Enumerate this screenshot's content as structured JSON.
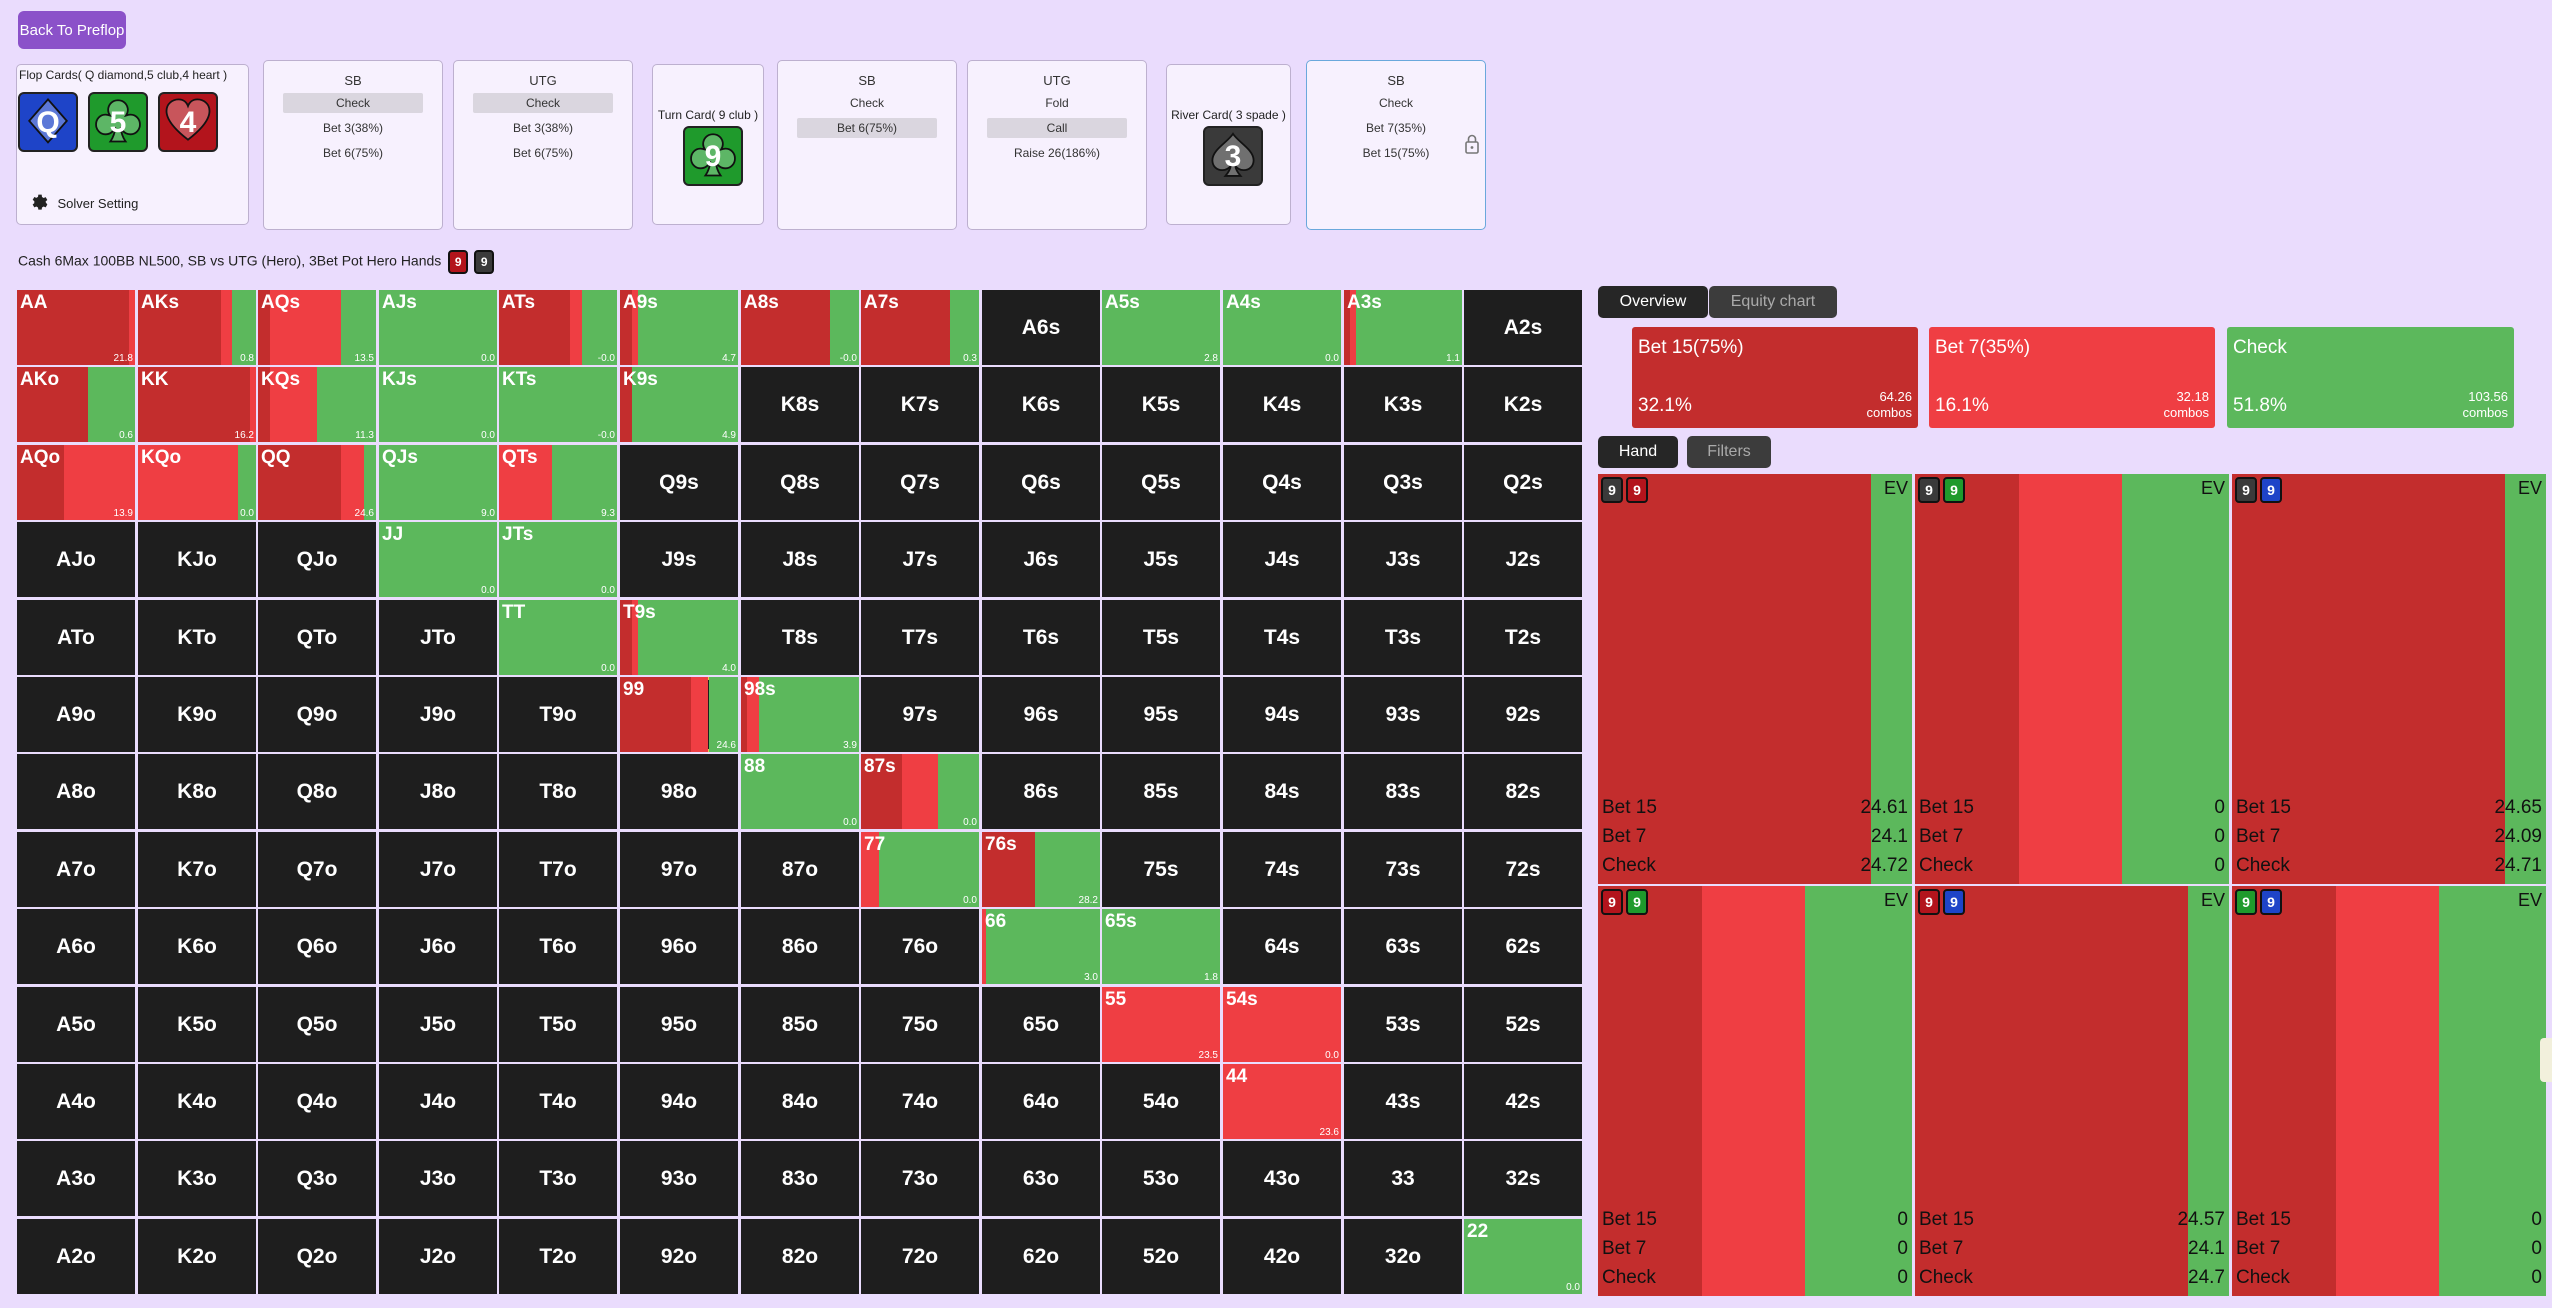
{
  "header": {
    "back_label": "Back To Preflop",
    "solver_setting": "Solver Setting"
  },
  "board": {
    "flop_label": "Flop Cards( Q diamond,5 club,4 heart )",
    "flop_cards": [
      {
        "rank": "Q",
        "suit": "diamond",
        "color": "#1e44c8"
      },
      {
        "rank": "5",
        "suit": "club",
        "color": "#1f9a2c"
      },
      {
        "rank": "4",
        "suit": "heart",
        "color": "#b3141c"
      }
    ],
    "turn_label": "Turn Card( 9 club )",
    "turn_card": {
      "rank": "9",
      "suit": "club",
      "color": "#1f9a2c"
    },
    "river_label": "River Card( 3 spade )",
    "river_card": {
      "rank": "3",
      "suit": "spade",
      "color": "#3a3a3a"
    }
  },
  "actions": [
    {
      "player": "SB",
      "items": [
        {
          "label": "Check",
          "selected": true
        },
        {
          "label": "Bet 3(38%)",
          "selected": false
        },
        {
          "label": "Bet 6(75%)",
          "selected": false
        }
      ]
    },
    {
      "player": "UTG",
      "items": [
        {
          "label": "Check",
          "selected": true
        },
        {
          "label": "Bet 3(38%)",
          "selected": false
        },
        {
          "label": "Bet 6(75%)",
          "selected": false
        }
      ]
    },
    {
      "player": "SB",
      "items": [
        {
          "label": "Check",
          "selected": false
        },
        {
          "label": "Bet 6(75%)",
          "selected": true
        }
      ]
    },
    {
      "player": "UTG",
      "items": [
        {
          "label": "Fold",
          "selected": false
        },
        {
          "label": "Call",
          "selected": true
        },
        {
          "label": "Raise 26(186%)",
          "selected": false
        }
      ]
    },
    {
      "player": "SB",
      "items": [
        {
          "label": "Check",
          "selected": false
        },
        {
          "label": "Bet 7(35%)",
          "selected": false
        },
        {
          "label": "Bet 15(75%)",
          "selected": false
        }
      ]
    }
  ],
  "description": "Cash 6Max 100BB NL500, SB vs UTG (Hero), 3Bet Pot Hero Hands",
  "desc_cards": [
    {
      "rank": "9",
      "color": "#b3141c"
    },
    {
      "rank": "9",
      "color": "#3a3a3a"
    }
  ],
  "colors": {
    "bet15": "#c32d2d",
    "bet7": "#ef3e43",
    "check": "#5cb85c",
    "dark": "#1e1e1e"
  },
  "grid": [
    [
      "AA",
      "AKs",
      "AQs",
      "AJs",
      "ATs",
      "A9s",
      "A8s",
      "A7s",
      "A6s",
      "A5s",
      "A4s",
      "A3s",
      "A2s"
    ],
    [
      "AKo",
      "KK",
      "KQs",
      "KJs",
      "KTs",
      "K9s",
      "K8s",
      "K7s",
      "K6s",
      "K5s",
      "K4s",
      "K3s",
      "K2s"
    ],
    [
      "AQo",
      "KQo",
      "QQ",
      "QJs",
      "QTs",
      "Q9s",
      "Q8s",
      "Q7s",
      "Q6s",
      "Q5s",
      "Q4s",
      "Q3s",
      "Q2s"
    ],
    [
      "AJo",
      "KJo",
      "QJo",
      "JJ",
      "JTs",
      "J9s",
      "J8s",
      "J7s",
      "J6s",
      "J5s",
      "J4s",
      "J3s",
      "J2s"
    ],
    [
      "ATo",
      "KTo",
      "QTo",
      "JTo",
      "TT",
      "T9s",
      "T8s",
      "T7s",
      "T6s",
      "T5s",
      "T4s",
      "T3s",
      "T2s"
    ],
    [
      "A9o",
      "K9o",
      "Q9o",
      "J9o",
      "T9o",
      "99",
      "98s",
      "97s",
      "96s",
      "95s",
      "94s",
      "93s",
      "92s"
    ],
    [
      "A8o",
      "K8o",
      "Q8o",
      "J8o",
      "T8o",
      "98o",
      "88",
      "87s",
      "86s",
      "85s",
      "84s",
      "83s",
      "82s"
    ],
    [
      "A7o",
      "K7o",
      "Q7o",
      "J7o",
      "T7o",
      "97o",
      "87o",
      "77",
      "76s",
      "75s",
      "74s",
      "73s",
      "72s"
    ],
    [
      "A6o",
      "K6o",
      "Q6o",
      "J6o",
      "T6o",
      "96o",
      "86o",
      "76o",
      "66",
      "65s",
      "64s",
      "63s",
      "62s"
    ],
    [
      "A5o",
      "K5o",
      "Q5o",
      "J5o",
      "T5o",
      "95o",
      "85o",
      "75o",
      "65o",
      "55",
      "54s",
      "53s",
      "52s"
    ],
    [
      "A4o",
      "K4o",
      "Q4o",
      "J4o",
      "T4o",
      "94o",
      "84o",
      "74o",
      "64o",
      "54o",
      "44",
      "43s",
      "42s"
    ],
    [
      "A3o",
      "K3o",
      "Q3o",
      "J3o",
      "T3o",
      "93o",
      "83o",
      "73o",
      "63o",
      "53o",
      "43o",
      "33",
      "32s"
    ],
    [
      "A2o",
      "K2o",
      "Q2o",
      "J2o",
      "T2o",
      "92o",
      "82o",
      "72o",
      "62o",
      "52o",
      "42o",
      "32o",
      "22"
    ]
  ],
  "hand_strategy": {
    "AA": {
      "mix": [
        0.95,
        0.05,
        0
      ],
      "ev": "21.8"
    },
    "AKs": {
      "mix": [
        0.7,
        0.1,
        0.2
      ],
      "ev": "0.8"
    },
    "AQs": {
      "mix": [
        0.1,
        0.6,
        0.3
      ],
      "ev": "13.5"
    },
    "AJs": {
      "mix": [
        0,
        0,
        1
      ],
      "ev": "0.0"
    },
    "ATs": {
      "mix": [
        0.6,
        0.1,
        0.3
      ],
      "ev": "-0.0"
    },
    "A9s": {
      "mix": [
        0.1,
        0.05,
        0.85
      ],
      "ev": "4.7"
    },
    "A8s": {
      "mix": [
        0.75,
        0,
        0.25
      ],
      "ev": "-0.0"
    },
    "A7s": {
      "mix": [
        0.75,
        0,
        0.25
      ],
      "ev": "0.3"
    },
    "A5s": {
      "mix": [
        0,
        0,
        1
      ],
      "ev": "2.8"
    },
    "A4s": {
      "mix": [
        0,
        0,
        1
      ],
      "ev": "0.0"
    },
    "A3s": {
      "mix": [
        0.05,
        0.05,
        0.9
      ],
      "ev": "1.1"
    },
    "AKo": {
      "mix": [
        0.6,
        0,
        0.4
      ],
      "ev": "0.6"
    },
    "KK": {
      "mix": [
        0.95,
        0.05,
        0
      ],
      "ev": "16.2"
    },
    "KQs": {
      "mix": [
        0.1,
        0.4,
        0.5
      ],
      "ev": "11.3"
    },
    "KJs": {
      "mix": [
        0,
        0,
        1
      ],
      "ev": "0.0"
    },
    "KTs": {
      "mix": [
        0,
        0,
        1
      ],
      "ev": "-0.0"
    },
    "K9s": {
      "mix": [
        0.1,
        0,
        0.9
      ],
      "ev": "4.9"
    },
    "AQo": {
      "mix": [
        0.4,
        0.6,
        0
      ],
      "ev": "13.9"
    },
    "KQo": {
      "mix": [
        0,
        0.85,
        0.15
      ],
      "ev": "0.0"
    },
    "QQ": {
      "mix": [
        0.7,
        0.2,
        0.1
      ],
      "ev": "24.6"
    },
    "QJs": {
      "mix": [
        0,
        0,
        1
      ],
      "ev": "9.0"
    },
    "QTs": {
      "mix": [
        0,
        0.45,
        0.55
      ],
      "ev": "9.3"
    },
    "JJ": {
      "mix": [
        0,
        0,
        1
      ],
      "ev": "0.0"
    },
    "JTs": {
      "mix": [
        0,
        0,
        1
      ],
      "ev": "0.0"
    },
    "TT": {
      "mix": [
        0,
        0,
        1
      ],
      "ev": "0.0"
    },
    "T9s": {
      "mix": [
        0.1,
        0.05,
        0.85
      ],
      "ev": "4.0"
    },
    "99": {
      "mix": [
        0.6,
        0.15,
        0.25
      ],
      "ev": "24.6"
    },
    "98s": {
      "mix": [
        0.05,
        0.1,
        0.85
      ],
      "ev": "3.9"
    },
    "88": {
      "mix": [
        0,
        0,
        1
      ],
      "ev": "0.0"
    },
    "87s": {
      "mix": [
        0.35,
        0.3,
        0.35
      ],
      "ev": "0.0"
    },
    "77": {
      "mix": [
        0,
        0.15,
        0.85
      ],
      "ev": "0.0"
    },
    "76s": {
      "mix": [
        0.45,
        0,
        0.55
      ],
      "ev": "28.2"
    },
    "66": {
      "mix": [
        0,
        0.03,
        0.97
      ],
      "ev": "3.0"
    },
    "65s": {
      "mix": [
        0,
        0,
        1
      ],
      "ev": "1.8"
    },
    "55": {
      "mix": [
        0,
        1,
        0
      ],
      "ev": "23.5"
    },
    "54s": {
      "mix": [
        0,
        1,
        0
      ],
      "ev": "0.0"
    },
    "44": {
      "mix": [
        0,
        1,
        0
      ],
      "ev": "23.6"
    },
    "22": {
      "mix": [
        0,
        0,
        1
      ],
      "ev": "0.0"
    }
  },
  "right_tabs": [
    {
      "label": "Overview",
      "active": true
    },
    {
      "label": "Equity chart",
      "active": false
    }
  ],
  "overview": [
    {
      "name": "Bet 15(75%)",
      "pct": "32.1%",
      "combos": "64.26",
      "combos_label": "combos",
      "color": "#c32d2d"
    },
    {
      "name": "Bet 7(35%)",
      "pct": "16.1%",
      "combos": "32.18",
      "combos_label": "combos",
      "color": "#ef3e43"
    },
    {
      "name": "Check",
      "pct": "51.8%",
      "combos": "103.56",
      "combos_label": "combos",
      "color": "#5cb85c"
    }
  ],
  "hand_tabs": [
    {
      "label": "Hand",
      "active": true
    },
    {
      "label": "Filters",
      "active": false
    }
  ],
  "hand_panels": [
    {
      "cards": [
        {
          "rank": "9",
          "color": "#3a3a3a"
        },
        {
          "rank": "9",
          "color": "#b3141c"
        }
      ],
      "mix": [
        0.87,
        0,
        0.13
      ],
      "ev_label": "EV",
      "rows": [
        {
          "label": "Bet 15",
          "ev": "24.61"
        },
        {
          "label": "Bet 7",
          "ev": "24.1"
        },
        {
          "label": "Check",
          "ev": "24.72"
        }
      ]
    },
    {
      "cards": [
        {
          "rank": "9",
          "color": "#3a3a3a"
        },
        {
          "rank": "9",
          "color": "#1f9a2c"
        }
      ],
      "mix": [
        0.33,
        0.33,
        0.34
      ],
      "ev_label": "EV",
      "rows": [
        {
          "label": "Bet 15",
          "ev": "0"
        },
        {
          "label": "Bet 7",
          "ev": "0"
        },
        {
          "label": "Check",
          "ev": "0"
        }
      ]
    },
    {
      "cards": [
        {
          "rank": "9",
          "color": "#3a3a3a"
        },
        {
          "rank": "9",
          "color": "#1e44c8"
        }
      ],
      "mix": [
        0.87,
        0,
        0.13
      ],
      "ev_label": "EV",
      "rows": [
        {
          "label": "Bet 15",
          "ev": "24.65"
        },
        {
          "label": "Bet 7",
          "ev": "24.09"
        },
        {
          "label": "Check",
          "ev": "24.71"
        }
      ]
    },
    {
      "cards": [
        {
          "rank": "9",
          "color": "#b3141c"
        },
        {
          "rank": "9",
          "color": "#1f9a2c"
        }
      ],
      "mix": [
        0.33,
        0.33,
        0.34
      ],
      "ev_label": "EV",
      "rows": [
        {
          "label": "Bet 15",
          "ev": "0"
        },
        {
          "label": "Bet 7",
          "ev": "0"
        },
        {
          "label": "Check",
          "ev": "0"
        }
      ]
    },
    {
      "cards": [
        {
          "rank": "9",
          "color": "#b3141c"
        },
        {
          "rank": "9",
          "color": "#1e44c8"
        }
      ],
      "mix": [
        0.87,
        0,
        0.13
      ],
      "ev_label": "EV",
      "rows": [
        {
          "label": "Bet 15",
          "ev": "24.57"
        },
        {
          "label": "Bet 7",
          "ev": "24.1"
        },
        {
          "label": "Check",
          "ev": "24.7"
        }
      ]
    },
    {
      "cards": [
        {
          "rank": "9",
          "color": "#1f9a2c"
        },
        {
          "rank": "9",
          "color": "#1e44c8"
        }
      ],
      "mix": [
        0.33,
        0.33,
        0.34
      ],
      "ev_label": "EV",
      "rows": [
        {
          "label": "Bet 15",
          "ev": "0"
        },
        {
          "label": "Bet 7",
          "ev": "0"
        },
        {
          "label": "Check",
          "ev": "0"
        }
      ]
    }
  ],
  "selected_hand": "99"
}
